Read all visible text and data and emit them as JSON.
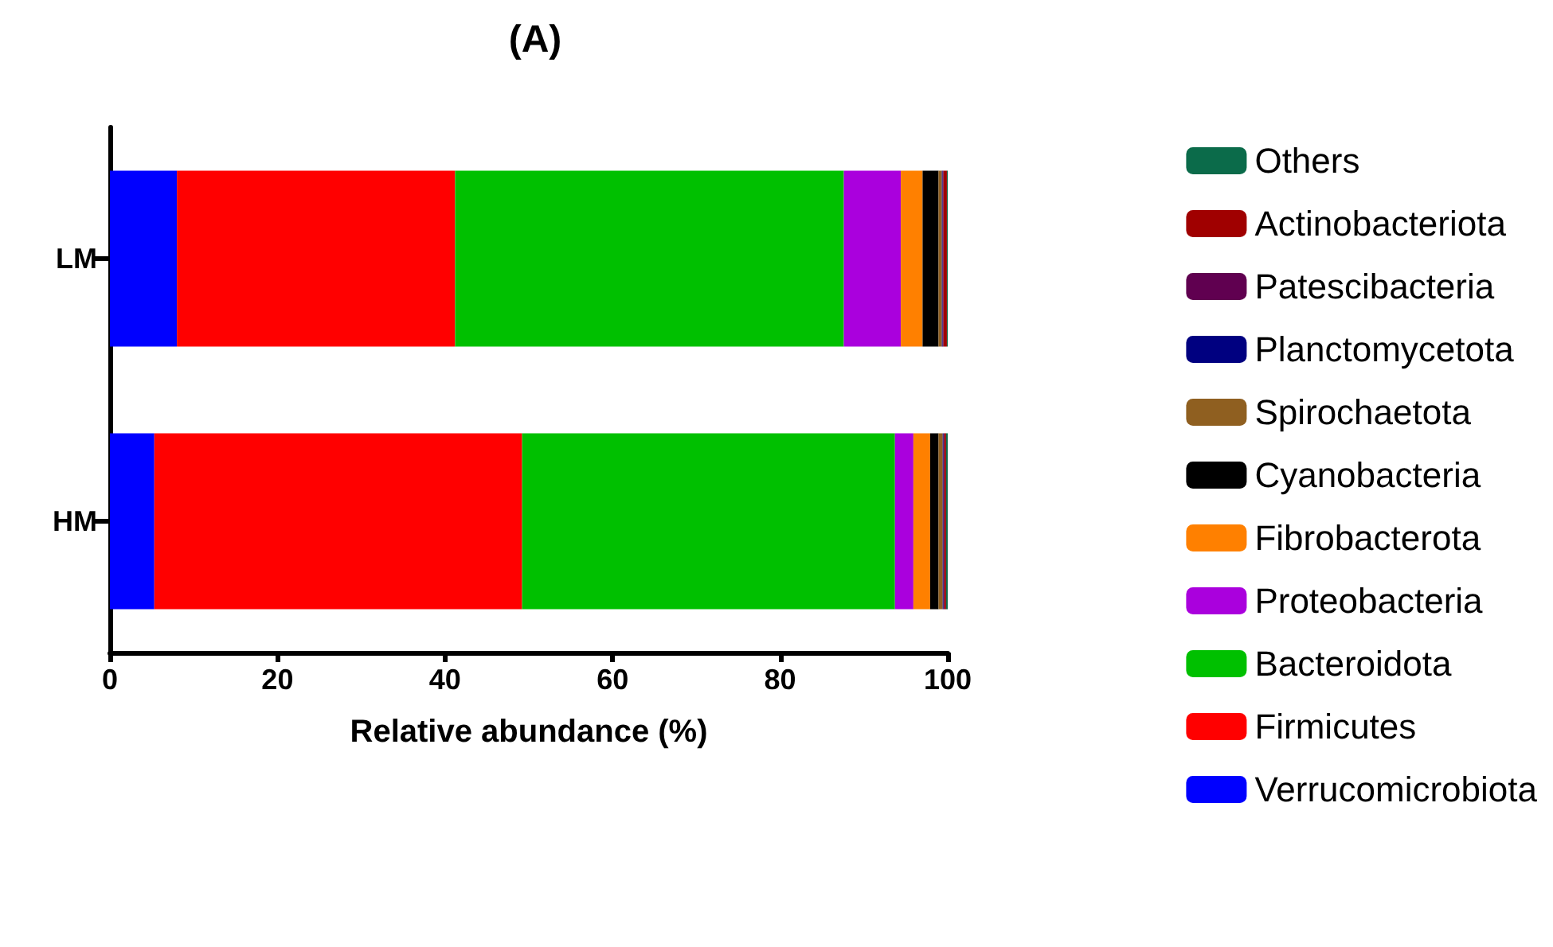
{
  "chart_data": {
    "type": "bar",
    "orientation": "horizontal",
    "stacked": true,
    "title": "(A)",
    "xlabel": "Relative abundance (%)",
    "categories": [
      "LM",
      "HM"
    ],
    "xlim": [
      0,
      100
    ],
    "xticks": [
      0,
      20,
      40,
      60,
      80,
      100
    ],
    "grid": false,
    "legend": "right",
    "series": [
      {
        "name": "Verrucomicrobiota",
        "color": "#0000ff",
        "values": [
          8.0,
          5.3
        ]
      },
      {
        "name": "Firmicutes",
        "color": "#ff0000",
        "values": [
          33.2,
          43.9
        ]
      },
      {
        "name": "Bacteroidota",
        "color": "#00c000",
        "values": [
          46.4,
          44.5
        ]
      },
      {
        "name": "Proteobacteria",
        "color": "#aa00dd",
        "values": [
          6.8,
          2.2
        ]
      },
      {
        "name": "Fibrobacterota",
        "color": "#ff8000",
        "values": [
          2.6,
          2.0
        ]
      },
      {
        "name": "Cyanobacteria",
        "color": "#000000",
        "values": [
          1.9,
          1.0
        ]
      },
      {
        "name": "Spirochaetota",
        "color": "#8f5f20",
        "values": [
          0.4,
          0.5
        ]
      },
      {
        "name": "Planctomycetota",
        "color": "#000080",
        "values": [
          0.1,
          0.1
        ]
      },
      {
        "name": "Patescibacteria",
        "color": "#600050",
        "values": [
          0.1,
          0.1
        ]
      },
      {
        "name": "Actinobacteriota",
        "color": "#a00000",
        "values": [
          0.4,
          0.2
        ]
      },
      {
        "name": "Others",
        "color": "#0b6b4a",
        "values": [
          0.1,
          0.2
        ]
      }
    ]
  }
}
